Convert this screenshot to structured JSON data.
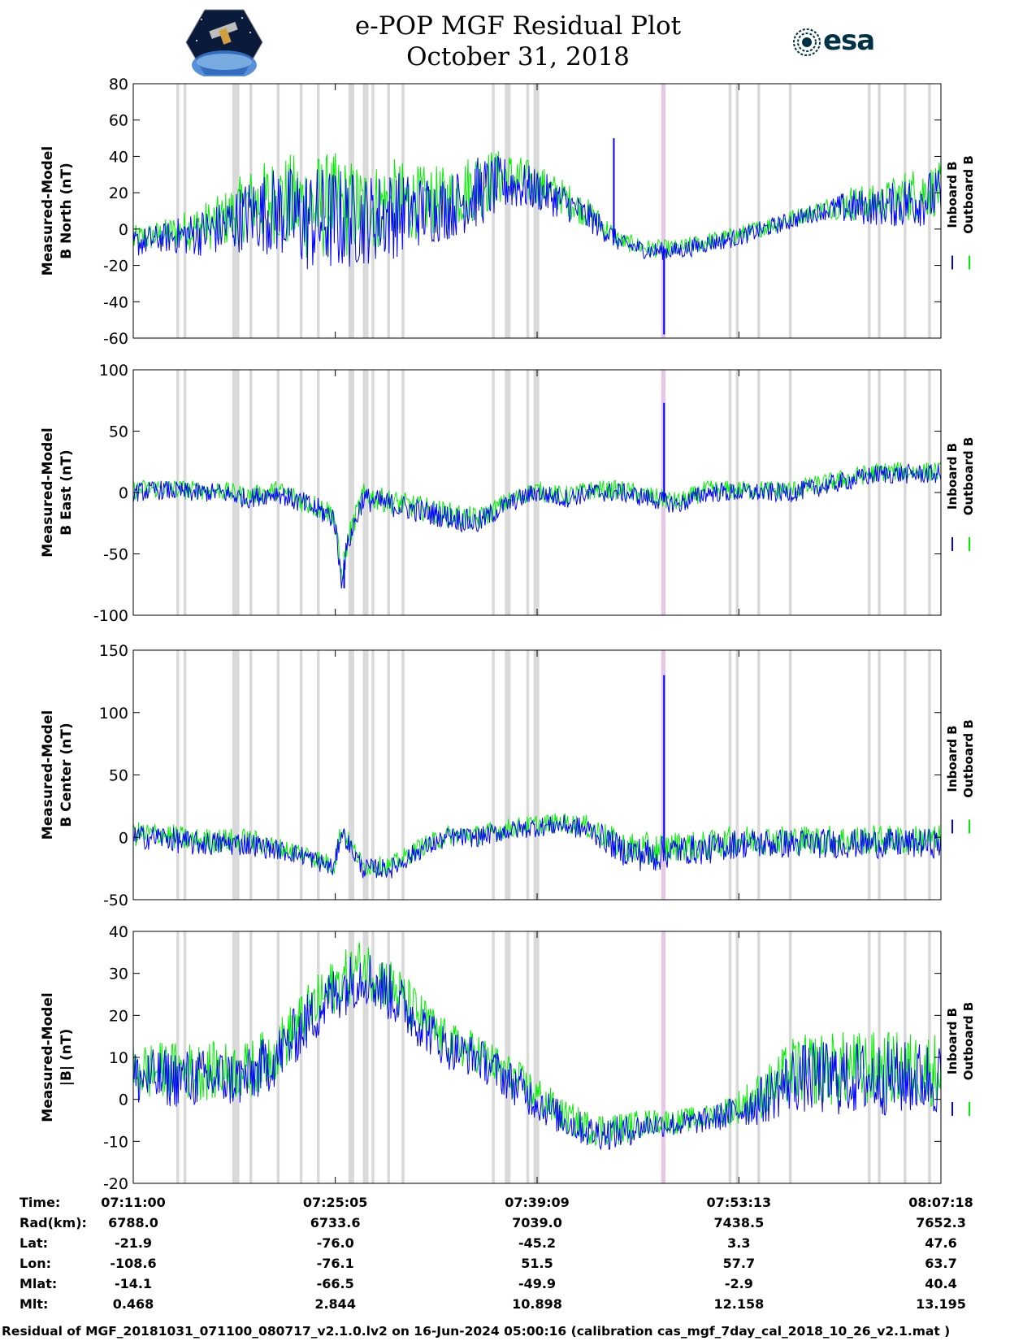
{
  "header": {
    "title_line1": "e-POP MGF Residual Plot",
    "title_line2": "October 31, 2018",
    "left_logo": "cassiope-satellite-logo",
    "right_logo_text": "esa"
  },
  "colors": {
    "inboard": "#0000ff",
    "outboard": "#00ee00",
    "gap_bars": "#d9d9d9",
    "highlight_bar": "#e6c8e6"
  },
  "chart_data": [
    {
      "type": "line",
      "ylabel_line1": "Measured-Model",
      "ylabel_line2": "B North (nT)",
      "ylim": [
        -60,
        80
      ],
      "yticks": [
        -60,
        -40,
        -20,
        0,
        20,
        40,
        60,
        80
      ],
      "series": [
        {
          "name": "Inboard B",
          "color": "#0000ff"
        },
        {
          "name": "Outboard B",
          "color": "#00ee00"
        }
      ],
      "x_minutes": [
        0,
        2,
        4,
        6,
        8,
        10,
        12,
        14,
        16,
        18,
        20,
        22,
        24,
        26,
        28,
        30,
        32,
        34,
        36,
        38,
        40,
        42,
        44,
        46,
        48,
        50,
        52,
        54,
        56
      ],
      "y_mean": [
        -8,
        -5,
        -3,
        0,
        8,
        10,
        5,
        5,
        5,
        8,
        10,
        12,
        20,
        25,
        22,
        15,
        5,
        -8,
        -12,
        -12,
        -8,
        -5,
        0,
        5,
        10,
        12,
        12,
        15,
        18
      ],
      "y_amplitude": [
        8,
        8,
        12,
        15,
        20,
        25,
        30,
        30,
        25,
        25,
        20,
        18,
        20,
        15,
        12,
        10,
        8,
        5,
        5,
        5,
        5,
        5,
        5,
        5,
        5,
        10,
        10,
        15,
        15
      ],
      "spikes": [
        {
          "minute": 37.0,
          "value": -58
        },
        {
          "minute": 33.5,
          "value": 50
        }
      ]
    },
    {
      "type": "line",
      "ylabel_line1": "Measured-Model",
      "ylabel_line2": "B East (nT)",
      "ylim": [
        -100,
        100
      ],
      "yticks": [
        -100,
        -50,
        0,
        50,
        100
      ],
      "series": [
        {
          "name": "Inboard B",
          "color": "#0000ff"
        },
        {
          "name": "Outboard B",
          "color": "#00ee00"
        }
      ],
      "x_minutes": [
        0,
        2,
        4,
        6,
        8,
        10,
        12,
        14,
        14.5,
        15,
        16,
        18,
        20,
        22,
        24,
        26,
        28,
        30,
        32,
        34,
        36,
        38,
        40,
        42,
        44,
        46,
        48,
        50,
        52,
        54,
        56
      ],
      "y_mean": [
        0,
        2,
        0,
        0,
        -5,
        0,
        -10,
        -20,
        -70,
        -40,
        -5,
        -10,
        -15,
        -20,
        -25,
        -10,
        0,
        -5,
        0,
        0,
        -5,
        -10,
        0,
        0,
        0,
        0,
        5,
        10,
        15,
        15,
        15
      ],
      "y_amplitude": [
        8,
        8,
        8,
        8,
        8,
        8,
        10,
        10,
        10,
        10,
        10,
        10,
        10,
        10,
        10,
        8,
        8,
        8,
        8,
        8,
        8,
        8,
        8,
        8,
        8,
        8,
        8,
        8,
        8,
        8,
        8
      ],
      "spikes": [
        {
          "minute": 37.0,
          "value": 73
        },
        {
          "minute": 14.7,
          "value": -78
        }
      ]
    },
    {
      "type": "line",
      "ylabel_line1": "Measured-Model",
      "ylabel_line2": "B Center (nT)",
      "ylim": [
        -50,
        150
      ],
      "yticks": [
        -50,
        0,
        50,
        100,
        150
      ],
      "series": [
        {
          "name": "Inboard B",
          "color": "#0000ff"
        },
        {
          "name": "Outboard B",
          "color": "#00ee00"
        }
      ],
      "x_minutes": [
        0,
        2,
        4,
        6,
        8,
        10,
        12,
        14,
        14.5,
        16,
        18,
        20,
        22,
        24,
        26,
        28,
        30,
        32,
        34,
        36,
        38,
        40,
        42,
        44,
        46,
        48,
        50,
        52,
        54,
        56
      ],
      "y_mean": [
        0,
        0,
        -5,
        -5,
        -5,
        -10,
        -15,
        -25,
        5,
        -25,
        -25,
        -10,
        0,
        0,
        5,
        8,
        10,
        5,
        -10,
        -15,
        -10,
        -10,
        -5,
        -5,
        -5,
        -5,
        -5,
        -5,
        -5,
        -5
      ],
      "y_amplitude": [
        10,
        10,
        10,
        10,
        10,
        8,
        8,
        8,
        8,
        8,
        8,
        8,
        8,
        8,
        8,
        8,
        8,
        10,
        12,
        15,
        12,
        12,
        12,
        12,
        12,
        12,
        12,
        12,
        12,
        12
      ],
      "spikes": [
        {
          "minute": 37.0,
          "value": 130
        }
      ]
    },
    {
      "type": "line",
      "ylabel_line1": "Measured-Model",
      "ylabel_line2": "|B| (nT)",
      "ylim": [
        -20,
        40
      ],
      "yticks": [
        -20,
        -10,
        0,
        10,
        20,
        30,
        40
      ],
      "series": [
        {
          "name": "Inboard B",
          "color": "#0000ff"
        },
        {
          "name": "Outboard B",
          "color": "#00ee00"
        }
      ],
      "x_minutes": [
        0,
        2,
        4,
        6,
        8,
        10,
        12,
        14,
        16,
        18,
        20,
        22,
        24,
        26,
        28,
        30,
        32,
        34,
        36,
        38,
        40,
        42,
        44,
        46,
        48,
        50,
        52,
        54,
        56
      ],
      "y_mean": [
        5,
        5,
        5,
        5,
        5,
        10,
        18,
        25,
        30,
        25,
        18,
        12,
        10,
        5,
        0,
        -5,
        -8,
        -8,
        -6,
        -6,
        -5,
        -3,
        0,
        5,
        5,
        5,
        5,
        5,
        5
      ],
      "y_amplitude": [
        7,
        7,
        7,
        7,
        7,
        7,
        7,
        7,
        7,
        7,
        6,
        5,
        5,
        5,
        5,
        4,
        4,
        4,
        3,
        3,
        3,
        4,
        6,
        8,
        9,
        9,
        9,
        9,
        9
      ],
      "spikes": []
    }
  ],
  "shared_x": {
    "x_range_minutes": [
      0,
      56.3
    ],
    "tick_minutes": [
      0,
      14.083,
      28.15,
      42.217,
      56.3
    ],
    "gap_bars_minutes": [
      [
        3.0,
        3.2
      ],
      [
        3.5,
        3.7
      ],
      [
        6.9,
        7.4
      ],
      [
        8.1,
        8.3
      ],
      [
        10.0,
        10.2
      ],
      [
        11.6,
        11.8
      ],
      [
        12.8,
        13.0
      ],
      [
        15.0,
        15.4
      ],
      [
        16.0,
        16.4
      ],
      [
        16.6,
        16.8
      ],
      [
        17.7,
        17.9
      ],
      [
        18.7,
        18.9
      ],
      [
        25.0,
        25.2
      ],
      [
        25.9,
        26.3
      ],
      [
        27.4,
        27.6
      ],
      [
        27.9,
        28.3
      ],
      [
        41.5,
        41.7
      ],
      [
        42.0,
        42.2
      ],
      [
        43.5,
        43.7
      ],
      [
        45.7,
        45.9
      ],
      [
        51.2,
        51.4
      ],
      [
        51.9,
        52.1
      ],
      [
        53.7,
        53.9
      ],
      [
        55.4,
        55.6
      ]
    ],
    "highlight_bar_minutes": [
      36.8,
      37.1
    ]
  },
  "legend": {
    "inboard_label": "Inboard B",
    "outboard_label": "Outboard B"
  },
  "ephemeris": {
    "row_labels": [
      "Time:",
      "Rad(km):",
      "Lat:",
      "Lon:",
      "Mlat:",
      "Mlt:"
    ],
    "columns": [
      [
        "07:11:00",
        "6788.0",
        "-21.9",
        "-108.6",
        "-14.1",
        "0.468"
      ],
      [
        "07:25:05",
        "6733.6",
        "-76.0",
        "-76.1",
        "-66.5",
        "2.844"
      ],
      [
        "07:39:09",
        "7039.0",
        "-45.2",
        "51.5",
        "-49.9",
        "10.898"
      ],
      [
        "07:53:13",
        "7438.5",
        "3.3",
        "57.7",
        "-2.9",
        "12.158"
      ],
      [
        "08:07:18",
        "7652.3",
        "47.6",
        "63.7",
        "40.4",
        "13.195"
      ]
    ]
  },
  "footer": "Residual of MGF_20181031_071100_080717_v2.1.0.lv2 on 16-Jun-2024 05:00:16 (calibration cas_mgf_7day_cal_2018_10_26_v2.1.mat )"
}
